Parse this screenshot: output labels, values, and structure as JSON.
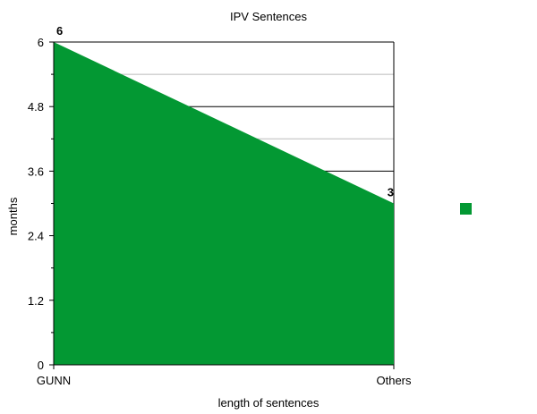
{
  "chart_data": {
    "type": "area",
    "title": "IPV Sentences",
    "xlabel": "length of sentences",
    "ylabel": "months",
    "categories": [
      "GUNN",
      "Others"
    ],
    "series": [
      {
        "values": [
          6,
          3
        ],
        "color": "#039833"
      }
    ],
    "ylim": [
      0,
      6
    ],
    "yticks": [
      "0",
      "1.2",
      "2.4",
      "3.6",
      "4.8",
      "6"
    ],
    "data_labels": [
      "6",
      "3"
    ],
    "grid": true,
    "legend": {
      "placement": "right",
      "color": "#039833"
    }
  }
}
